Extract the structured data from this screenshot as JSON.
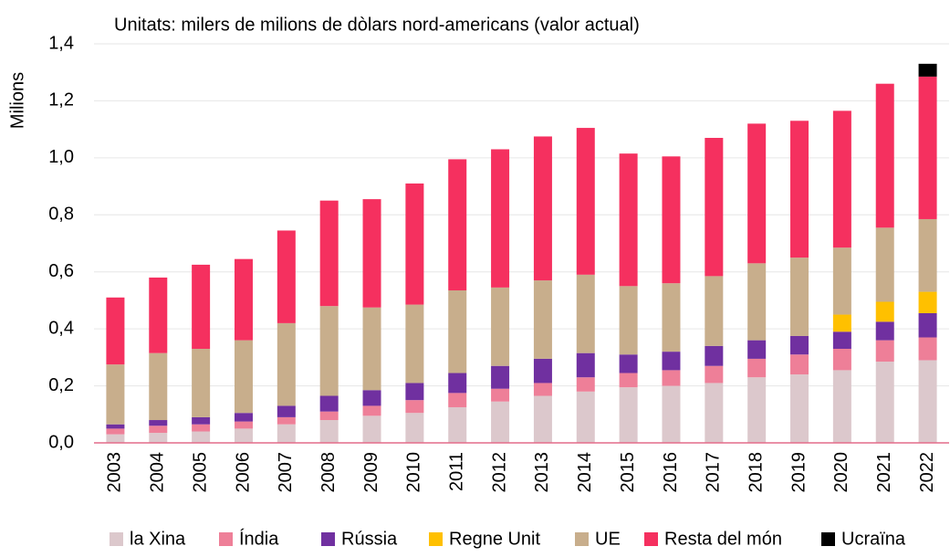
{
  "chart_data": {
    "type": "stacked_bar",
    "title": "Unitats: milers de milions de dòlars nord-americans (valor actual)",
    "y_label": "Milions",
    "categories": [
      "2003",
      "2004",
      "2005",
      "2006",
      "2007",
      "2008",
      "2009",
      "2010",
      "2011",
      "2012",
      "2013",
      "2014",
      "2015",
      "2016",
      "2017",
      "2018",
      "2019",
      "2020",
      "2021",
      "2022"
    ],
    "series": [
      {
        "name": "la Xina",
        "color": "#dcc8cc",
        "values": [
          0.03,
          0.035,
          0.04,
          0.05,
          0.065,
          0.08,
          0.095,
          0.105,
          0.125,
          0.145,
          0.165,
          0.18,
          0.195,
          0.2,
          0.21,
          0.23,
          0.24,
          0.255,
          0.285,
          0.29
        ]
      },
      {
        "name": "Índia",
        "color": "#ee7f98",
        "values": [
          0.02,
          0.025,
          0.025,
          0.025,
          0.025,
          0.03,
          0.035,
          0.045,
          0.05,
          0.045,
          0.045,
          0.05,
          0.05,
          0.055,
          0.06,
          0.065,
          0.07,
          0.075,
          0.075,
          0.08
        ]
      },
      {
        "name": "Rússia",
        "color": "#7030a0",
        "values": [
          0.015,
          0.02,
          0.025,
          0.03,
          0.04,
          0.055,
          0.055,
          0.06,
          0.07,
          0.08,
          0.085,
          0.085,
          0.065,
          0.065,
          0.07,
          0.065,
          0.065,
          0.06,
          0.065,
          0.085
        ]
      },
      {
        "name": "Regne Unit",
        "color": "#ffc000",
        "values": [
          0,
          0,
          0,
          0,
          0,
          0,
          0,
          0,
          0,
          0,
          0,
          0,
          0,
          0,
          0,
          0,
          0,
          0.06,
          0.07,
          0.075
        ]
      },
      {
        "name": "UE",
        "color": "#c8ae8c",
        "values": [
          0.21,
          0.235,
          0.24,
          0.255,
          0.29,
          0.315,
          0.29,
          0.275,
          0.29,
          0.275,
          0.275,
          0.275,
          0.24,
          0.24,
          0.245,
          0.27,
          0.275,
          0.235,
          0.26,
          0.255
        ]
      },
      {
        "name": "Resta del món",
        "color": "#f5305f",
        "values": [
          0.235,
          0.265,
          0.295,
          0.285,
          0.325,
          0.37,
          0.38,
          0.425,
          0.46,
          0.485,
          0.505,
          0.515,
          0.465,
          0.445,
          0.485,
          0.49,
          0.48,
          0.48,
          0.505,
          0.5
        ]
      },
      {
        "name": "Ucraïna",
        "color": "#000000",
        "values": [
          0,
          0,
          0,
          0,
          0,
          0,
          0,
          0,
          0,
          0,
          0,
          0,
          0,
          0,
          0,
          0,
          0,
          0,
          0,
          0.045
        ]
      }
    ],
    "ylim": [
      0,
      1.4
    ],
    "yticks": [
      {
        "value": 0,
        "label": "0,0"
      },
      {
        "value": 0.2,
        "label": "0,2"
      },
      {
        "value": 0.4,
        "label": "0,4"
      },
      {
        "value": 0.6,
        "label": "0,6"
      },
      {
        "value": 0.8,
        "label": "0,8"
      },
      {
        "value": 1.0,
        "label": "1,0"
      },
      {
        "value": 1.2,
        "label": "1,2"
      },
      {
        "value": 1.4,
        "label": "1,4"
      }
    ],
    "grid": true
  }
}
